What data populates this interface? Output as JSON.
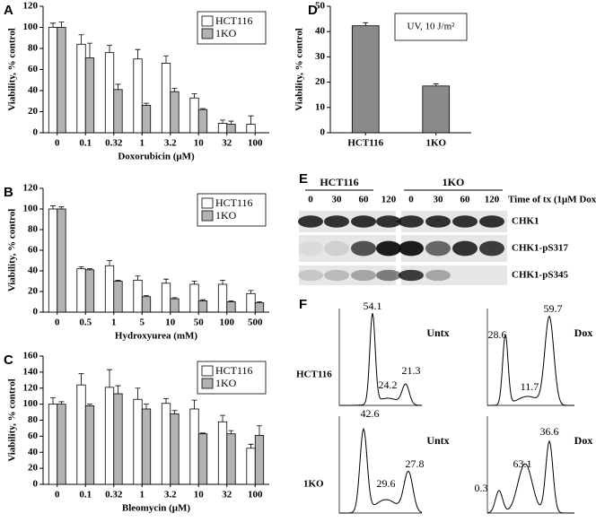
{
  "chart_data": [
    {
      "type": "bar",
      "panel": "A",
      "ylabel": "Viability, % control",
      "xlabel": "Doxorubicin (μM)",
      "categories": [
        "0",
        "0.1",
        "0.32",
        "1",
        "3.2",
        "10",
        "32",
        "100"
      ],
      "series": [
        {
          "name": "HCT116",
          "color": "#ffffff",
          "values": [
            100,
            84,
            76,
            70,
            66,
            33,
            9,
            8
          ],
          "errors": [
            4,
            9,
            7,
            9,
            7,
            4,
            3,
            8
          ]
        },
        {
          "name": "1KO",
          "color": "#b3b3b3",
          "values": [
            100,
            71,
            41,
            26,
            39,
            22,
            8,
            null
          ],
          "errors": [
            5,
            14,
            5,
            2,
            3,
            1,
            3,
            null
          ]
        }
      ],
      "ylim": [
        0,
        120
      ],
      "yticks": [
        0,
        20,
        40,
        60,
        80,
        100,
        120
      ],
      "legend": "upper right"
    },
    {
      "type": "bar",
      "panel": "B",
      "ylabel": "Viability, % control",
      "xlabel": "Hydroxyurea (mM)",
      "categories": [
        "0",
        "0.5",
        "1",
        "5",
        "10",
        "50",
        "100",
        "500"
      ],
      "series": [
        {
          "name": "HCT116",
          "color": "#ffffff",
          "values": [
            100,
            42,
            45,
            31,
            28,
            27,
            27,
            18
          ],
          "errors": [
            3,
            2,
            5,
            4,
            4,
            3,
            4,
            3
          ]
        },
        {
          "name": "1KO",
          "color": "#b3b3b3",
          "values": [
            100,
            41,
            30,
            15,
            13,
            11,
            10,
            9
          ],
          "errors": [
            2,
            1,
            1,
            1,
            1,
            1,
            1,
            1
          ]
        }
      ],
      "ylim": [
        0,
        120
      ],
      "yticks": [
        0,
        20,
        40,
        60,
        80,
        100,
        120
      ],
      "legend": "upper right"
    },
    {
      "type": "bar",
      "panel": "C",
      "ylabel": "Viability, % control",
      "xlabel": "Bleomycin (μM)",
      "categories": [
        "0",
        "0.1",
        "0.32",
        "1",
        "3.2",
        "10",
        "32",
        "100"
      ],
      "series": [
        {
          "name": "HCT116",
          "color": "#ffffff",
          "values": [
            100,
            124,
            121,
            106,
            101,
            94,
            78,
            45
          ],
          "errors": [
            8,
            14,
            22,
            14,
            6,
            11,
            8,
            5
          ]
        },
        {
          "name": "1KO",
          "color": "#b3b3b3",
          "values": [
            100,
            98,
            113,
            94,
            88,
            63,
            63,
            61
          ],
          "errors": [
            3,
            2,
            10,
            6,
            4,
            1,
            4,
            12
          ]
        }
      ],
      "ylim": [
        0,
        160
      ],
      "yticks": [
        0,
        20,
        40,
        60,
        80,
        100,
        120,
        140,
        160
      ],
      "legend": "upper right"
    },
    {
      "type": "bar",
      "panel": "D",
      "ylabel": "Viability, % control",
      "annotation": "UV, 10 J/m²",
      "categories": [
        "HCT116",
        "1KO"
      ],
      "values": [
        42.3,
        18.5
      ],
      "errors": [
        1.2,
        0.8
      ],
      "color": "#8a8a8a",
      "ylim": [
        0,
        50
      ],
      "yticks": [
        0,
        10,
        20,
        30,
        40,
        50
      ]
    }
  ],
  "blot": {
    "panel": "E",
    "groups": [
      "HCT116",
      "1KO"
    ],
    "lanes": [
      "0",
      "30",
      "60",
      "120",
      "0",
      "30",
      "60",
      "120"
    ],
    "time_label": "Time of tx (1μM Dox)",
    "rows": [
      "CHK1",
      "CHK1-pS317",
      "CHK1-pS345"
    ]
  },
  "flow": {
    "panel": "F",
    "rows": [
      "HCT116",
      "1KO"
    ],
    "plots": [
      {
        "label": "Untx",
        "peaks": [
          54.1,
          24.2,
          21.3
        ]
      },
      {
        "label": "Dox",
        "peaks": [
          28.6,
          59.7,
          11.7
        ]
      },
      {
        "label": "Untx",
        "peaks": [
          42.6,
          29.6,
          27.8
        ]
      },
      {
        "label": "Dox",
        "peaks": [
          0.3,
          63.1,
          36.6
        ]
      }
    ]
  }
}
